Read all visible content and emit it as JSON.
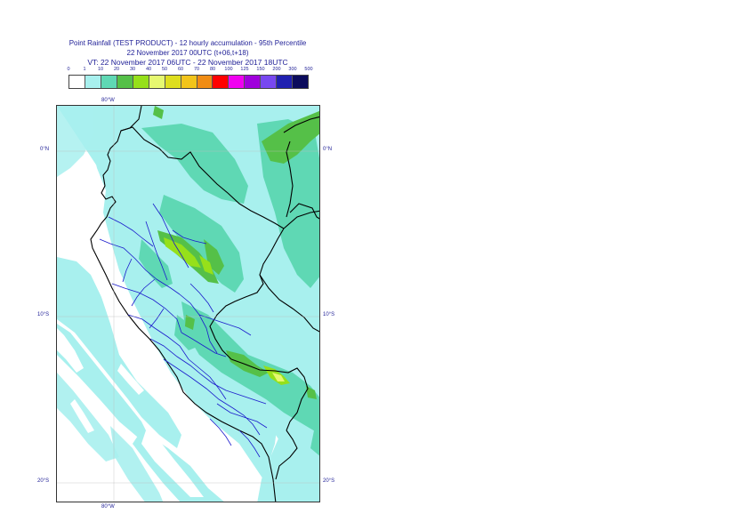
{
  "title": {
    "line1": "Point Rainfall (TEST PRODUCT) - 12 hourly accumulation - 95th Percentile",
    "line2": "22 November 2017 00UTC (t+06,t+18)",
    "line3": "VT: 22 November 2017 06UTC - 22 November 2017 18UTC"
  },
  "legend": {
    "labels": [
      "0",
      "1",
      "10",
      "20",
      "30",
      "40",
      "50",
      "60",
      "70",
      "80",
      "100",
      "125",
      "150",
      "200",
      "300",
      "500"
    ],
    "colors": [
      "#ffffff",
      "#a8f0ee",
      "#5fd8b4",
      "#55c048",
      "#96e01a",
      "#e6f870",
      "#dede1e",
      "#f2c41a",
      "#f08c14",
      "#ff0000",
      "#f000f0",
      "#a000dc",
      "#7848f0",
      "#2020b0",
      "#0c0c5c"
    ]
  },
  "axes": {
    "top_lon": "80°W",
    "bottom_lon": "80°W",
    "lat_0_left": "0°N",
    "lat_0_right": "0°N",
    "lat_10_left": "10°S",
    "lat_10_right": "10°S",
    "lat_20_left": "20°S",
    "lat_20_right": "20°S"
  },
  "map": {
    "region": "Peru",
    "precip_colors": {
      "light": "#a8f0ee",
      "moderate": "#5fd8b4",
      "heavy": "#55c048",
      "very_heavy": "#96e01a",
      "extreme": "#e6f870"
    },
    "border_color": "#000000",
    "admin_border_color": "#1a1acc"
  }
}
